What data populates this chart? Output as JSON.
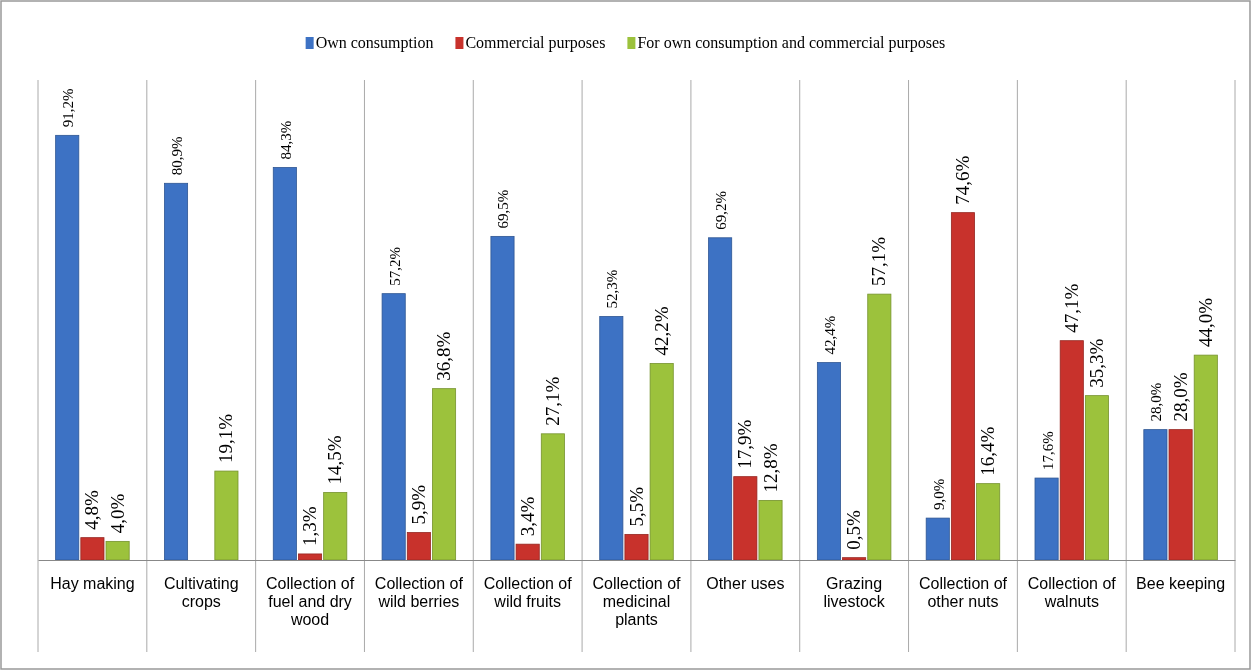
{
  "chart_data": {
    "type": "bar",
    "categories": [
      "Hay making",
      "Cultivating crops",
      "Collection of fuel and dry wood",
      "Collection of wild berries",
      "Collection of wild fruits",
      "Collection of medicinal plants",
      "Other uses",
      "Grazing livestock",
      "Collection of other nuts",
      "Collection of walnuts",
      "Bee keeping"
    ],
    "series": [
      {
        "name": "Own consumption",
        "color": "#3d72c4",
        "values": [
          91.2,
          80.9,
          84.3,
          57.2,
          69.5,
          52.3,
          69.2,
          42.4,
          9.0,
          17.6,
          28.0
        ],
        "value_labels": [
          "91,2%",
          "80,9%",
          "84,3%",
          "57,2%",
          "69,5%",
          "52,3%",
          "69,2%",
          "42,4%",
          "9,0%",
          "17,6%",
          "28,0%"
        ]
      },
      {
        "name": "Commercial purposes",
        "color": "#c8322c",
        "values": [
          4.8,
          null,
          1.3,
          5.9,
          3.4,
          5.5,
          17.9,
          0.5,
          74.6,
          47.1,
          28.0
        ],
        "value_labels": [
          "4,8%",
          null,
          "1,3%",
          "5,9%",
          "3,4%",
          "5,5%",
          "17,9%",
          "0,5%",
          "74,6%",
          "47,1%",
          "28,0%"
        ]
      },
      {
        "name": "For own consumption and commercial purposes",
        "color": "#9cc23c",
        "values": [
          4.0,
          19.1,
          14.5,
          36.8,
          27.1,
          42.2,
          12.8,
          57.1,
          16.4,
          35.3,
          44.0
        ],
        "value_labels": [
          "4,0%",
          "19,1%",
          "14,5%",
          "36,8%",
          "27,1%",
          "42,2%",
          "12,8%",
          "57,1%",
          "16,4%",
          "35,3%",
          "44,0%"
        ]
      }
    ],
    "grid": "x",
    "legend": "top"
  }
}
